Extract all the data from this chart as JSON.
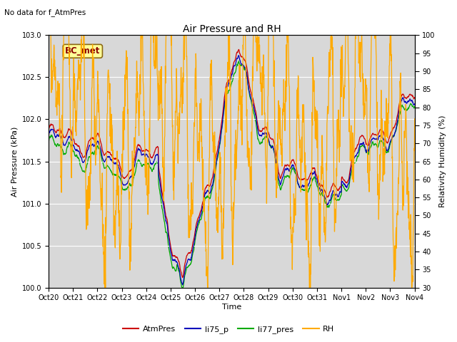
{
  "title": "Air Pressure and RH",
  "top_left_text": "No data for f_AtmPres",
  "box_label": "BC_met",
  "xlabel": "Time",
  "ylabel_left": "Air Pressure (kPa)",
  "ylabel_right": "Relativity Humidity (%)",
  "ylim_left": [
    100.0,
    103.0
  ],
  "ylim_right": [
    30,
    100
  ],
  "yticks_left": [
    100.0,
    100.5,
    101.0,
    101.5,
    102.0,
    102.5,
    103.0
  ],
  "yticks_right": [
    30,
    35,
    40,
    45,
    50,
    55,
    60,
    65,
    70,
    75,
    80,
    85,
    90,
    95,
    100
  ],
  "xtick_labels": [
    "Oct 20",
    "Oct 21",
    "Oct 22",
    "Oct 23",
    "Oct 24",
    "Oct 25",
    "Oct 26",
    "Oct 27",
    "Oct 28",
    "Oct 29",
    "Oct 30",
    "Oct 31",
    "Nov 1",
    "Nov 2",
    "Nov 3",
    "Nov 4"
  ],
  "n_days": 15,
  "bg_color": "#d8d8d8",
  "line_colors": {
    "AtmPres": "#cc0000",
    "li75_p": "#0000bb",
    "li77_pres": "#00aa00",
    "RH": "#ffaa00"
  },
  "legend_labels": [
    "AtmPres",
    "li75_p",
    "li77_pres",
    "RH"
  ],
  "legend_colors": [
    "#cc0000",
    "#0000bb",
    "#00aa00",
    "#ffaa00"
  ],
  "title_fontsize": 10,
  "label_fontsize": 8,
  "tick_fontsize": 7,
  "legend_fontsize": 8
}
